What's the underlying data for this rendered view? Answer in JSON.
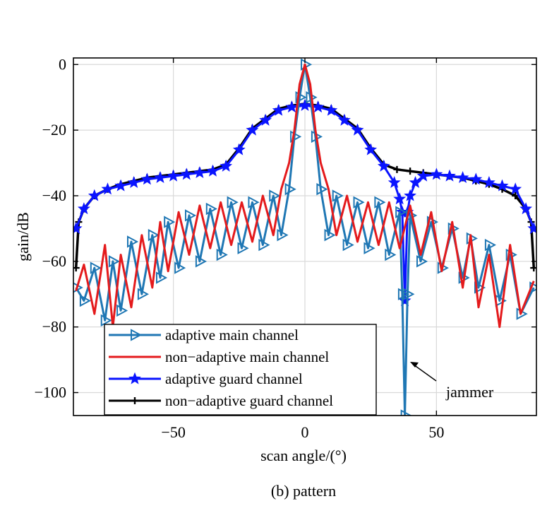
{
  "caption": "(b) pattern",
  "chart_data": {
    "type": "line",
    "title": "",
    "xlabel": "scan angle/(°)",
    "ylabel": "gain/dB",
    "xlim": [
      -88,
      88
    ],
    "ylim": [
      -107,
      2
    ],
    "xticks": [
      -50,
      0,
      50
    ],
    "yticks": [
      0,
      -20,
      -40,
      -60,
      -80,
      -100
    ],
    "grid": true,
    "legend": "bottom-left",
    "annotation": {
      "text": "jammer",
      "x": 38,
      "y": -90
    },
    "jammer_angle": 38,
    "series": [
      {
        "name": "adaptive main channel",
        "color": "#1f77b4",
        "marker": "triangle-right",
        "x": [
          -87,
          -84,
          -80,
          -76,
          -73,
          -70,
          -66,
          -62,
          -58,
          -55,
          -52,
          -48,
          -44,
          -40,
          -36,
          -32,
          -28,
          -24,
          -20,
          -16,
          -12,
          -9,
          -6,
          -4,
          -2,
          0,
          2,
          4,
          6,
          9,
          12,
          16,
          20,
          24,
          28,
          32,
          36,
          37,
          38,
          39,
          40,
          44,
          48,
          52,
          56,
          60,
          63,
          66,
          70,
          74,
          78,
          82,
          87
        ],
        "y": [
          -68,
          -72,
          -62,
          -78,
          -60,
          -75,
          -54,
          -70,
          -52,
          -65,
          -48,
          -62,
          -46,
          -60,
          -44,
          -58,
          -42,
          -56,
          -42,
          -55,
          -40,
          -52,
          -38,
          -22,
          -10,
          0,
          -10,
          -22,
          -38,
          -52,
          -40,
          -55,
          -42,
          -56,
          -42,
          -58,
          -45,
          -70,
          -107,
          -70,
          -46,
          -60,
          -48,
          -62,
          -50,
          -65,
          -53,
          -68,
          -55,
          -72,
          -58,
          -76,
          -68
        ]
      },
      {
        "name": "non−adaptive main channel",
        "color": "#e41a1c",
        "marker": "none",
        "x": [
          -87,
          -84,
          -80,
          -76,
          -73,
          -70,
          -66,
          -62,
          -58,
          -55,
          -52,
          -48,
          -44,
          -40,
          -36,
          -32,
          -28,
          -24,
          -20,
          -16,
          -12,
          -9,
          -6,
          -4,
          -2,
          0,
          2,
          4,
          6,
          9,
          12,
          16,
          20,
          24,
          28,
          32,
          36,
          40,
          44,
          48,
          52,
          56,
          60,
          63,
          66,
          70,
          74,
          78,
          82,
          87
        ],
        "y": [
          -69,
          -61,
          -76,
          -55,
          -80,
          -58,
          -74,
          -52,
          -68,
          -48,
          -63,
          -45,
          -58,
          -43,
          -56,
          -42,
          -55,
          -42,
          -54,
          -40,
          -52,
          -38,
          -30,
          -20,
          -6,
          0,
          -6,
          -20,
          -30,
          -38,
          -52,
          -40,
          -54,
          -42,
          -55,
          -42,
          -56,
          -43,
          -58,
          -45,
          -63,
          -48,
          -68,
          -52,
          -74,
          -58,
          -80,
          -55,
          -76,
          -66
        ]
      },
      {
        "name": "adaptive guard channel",
        "color": "#0a14ff",
        "marker": "star",
        "x": [
          -87,
          -84,
          -80,
          -75,
          -70,
          -65,
          -60,
          -55,
          -50,
          -45,
          -40,
          -35,
          -30,
          -25,
          -20,
          -15,
          -10,
          -5,
          0,
          5,
          10,
          15,
          20,
          25,
          30,
          34,
          36,
          37,
          38,
          39,
          40,
          42,
          45,
          50,
          55,
          60,
          65,
          70,
          75,
          80,
          84,
          87
        ],
        "y": [
          -50,
          -44,
          -40,
          -38,
          -37,
          -36,
          -35,
          -34.5,
          -34,
          -33.5,
          -33,
          -32.5,
          -31,
          -26,
          -20,
          -17,
          -14,
          -13,
          -12.5,
          -13,
          -14,
          -17,
          -20,
          -26,
          -31,
          -36,
          -41,
          -45,
          -72,
          -45,
          -40,
          -36,
          -34,
          -33.5,
          -34,
          -34.5,
          -35,
          -36,
          -37,
          -38,
          -44,
          -50
        ]
      },
      {
        "name": "non−adaptive guard channel",
        "color": "#000000",
        "marker": "plus",
        "x": [
          -87,
          -86,
          -84,
          -80,
          -75,
          -70,
          -65,
          -60,
          -55,
          -50,
          -45,
          -40,
          -35,
          -30,
          -25,
          -20,
          -15,
          -10,
          -5,
          0,
          5,
          10,
          15,
          20,
          25,
          30,
          35,
          40,
          45,
          50,
          55,
          60,
          65,
          70,
          75,
          80,
          84,
          86,
          87
        ],
        "y": [
          -62,
          -48,
          -44,
          -40,
          -38,
          -36.5,
          -35.5,
          -34.5,
          -34,
          -33.5,
          -33,
          -32.5,
          -32,
          -30.5,
          -25.5,
          -19.5,
          -16.5,
          -13.5,
          -12.5,
          -12,
          -12.5,
          -13.5,
          -16.5,
          -19.5,
          -25.5,
          -30.5,
          -32,
          -32.5,
          -33,
          -33.5,
          -34,
          -34.5,
          -35.5,
          -36.5,
          -38,
          -40,
          -44,
          -48,
          -62
        ]
      }
    ]
  }
}
